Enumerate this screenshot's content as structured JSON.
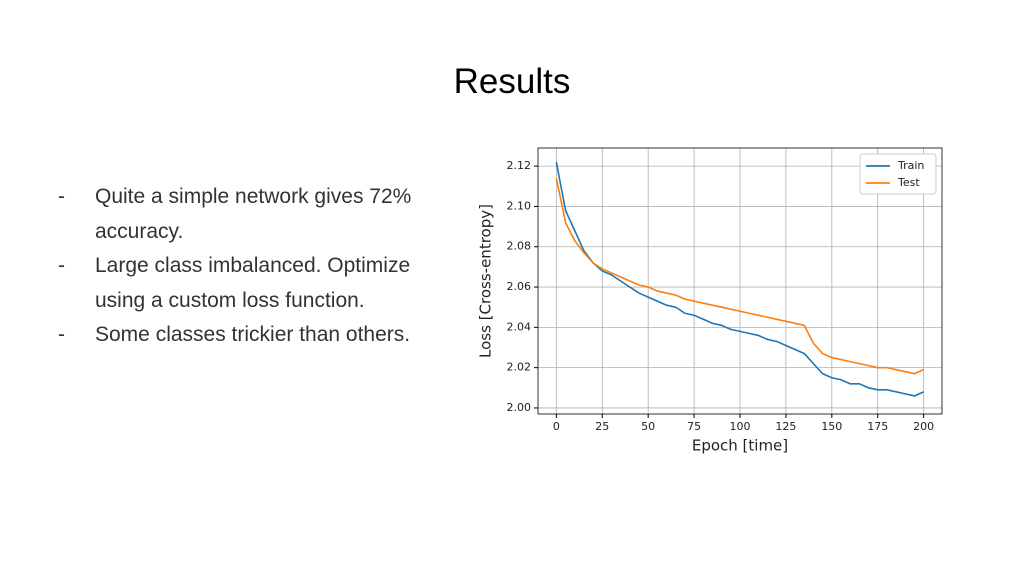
{
  "slide": {
    "title": "Results",
    "marker": "-",
    "bullets": [
      "Quite a simple network gives 72% accuracy.",
      "Large class imbalanced. Optimize using a custom loss function.",
      "Some classes trickier than others."
    ]
  },
  "chart_data": {
    "type": "line",
    "xlabel": "Epoch [time]",
    "ylabel": "Loss [Cross-entropy]",
    "x": [
      0,
      5,
      10,
      15,
      20,
      25,
      30,
      35,
      40,
      45,
      50,
      55,
      60,
      65,
      70,
      75,
      80,
      85,
      90,
      95,
      100,
      105,
      110,
      115,
      120,
      125,
      130,
      135,
      140,
      145,
      150,
      155,
      160,
      165,
      170,
      175,
      180,
      185,
      190,
      195,
      200
    ],
    "series": [
      {
        "name": "Train",
        "color": "#1f77b4",
        "values": [
          2.122,
          2.098,
          2.088,
          2.078,
          2.072,
          2.068,
          2.066,
          2.063,
          2.06,
          2.057,
          2.055,
          2.053,
          2.051,
          2.05,
          2.047,
          2.046,
          2.044,
          2.042,
          2.041,
          2.039,
          2.038,
          2.037,
          2.036,
          2.034,
          2.033,
          2.031,
          2.029,
          2.027,
          2.022,
          2.017,
          2.015,
          2.014,
          2.012,
          2.012,
          2.01,
          2.009,
          2.009,
          2.008,
          2.007,
          2.006,
          2.008
        ]
      },
      {
        "name": "Test",
        "color": "#ff7f0e",
        "values": [
          2.114,
          2.092,
          2.083,
          2.077,
          2.072,
          2.069,
          2.067,
          2.065,
          2.063,
          2.061,
          2.06,
          2.058,
          2.057,
          2.056,
          2.054,
          2.053,
          2.052,
          2.051,
          2.05,
          2.049,
          2.048,
          2.047,
          2.046,
          2.045,
          2.044,
          2.043,
          2.042,
          2.041,
          2.032,
          2.027,
          2.025,
          2.024,
          2.023,
          2.022,
          2.021,
          2.02,
          2.02,
          2.019,
          2.018,
          2.017,
          2.019
        ]
      }
    ],
    "xlim": [
      -10,
      210
    ],
    "ylim": [
      1.997,
      2.129
    ],
    "xticks": [
      0,
      25,
      50,
      75,
      100,
      125,
      150,
      175,
      200
    ],
    "yticks": [
      {
        "value": 2.0,
        "label": "2.00"
      },
      2.02,
      2.04,
      2.06,
      2.08,
      {
        "value": 2.1,
        "label": "2.10"
      },
      2.12
    ],
    "grid": true,
    "legend": "upper right"
  }
}
